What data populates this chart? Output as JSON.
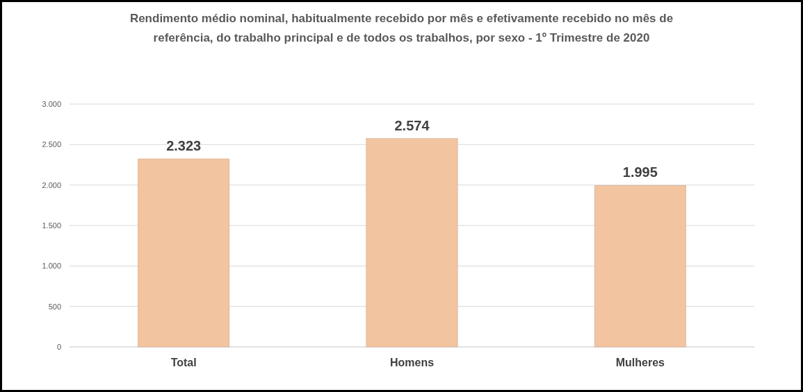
{
  "chart_data": {
    "type": "bar",
    "title": "Rendimento médio nominal, habitualmente recebido por mês e efetivamente recebido no mês de referência, do trabalho principal e de todos os trabalhos, por sexo - 1º Trimestre de 2020",
    "categories": [
      "Total",
      "Homens",
      "Mulheres"
    ],
    "values": [
      2323,
      2574,
      1995
    ],
    "value_labels": [
      "2.323",
      "2.574",
      "1.995"
    ],
    "color": "#f2c4a0",
    "ylim": [
      0,
      3000
    ],
    "yticks": [
      0,
      500,
      {
        "value": 1000,
        "label": "1.000"
      },
      {
        "value": 1500,
        "label": "1.500"
      },
      {
        "value": 2000,
        "label": "2.000"
      },
      {
        "value": 2500,
        "label": "2.500"
      },
      {
        "value": 3000,
        "label": "3.000"
      }
    ],
    "grid": "y"
  }
}
